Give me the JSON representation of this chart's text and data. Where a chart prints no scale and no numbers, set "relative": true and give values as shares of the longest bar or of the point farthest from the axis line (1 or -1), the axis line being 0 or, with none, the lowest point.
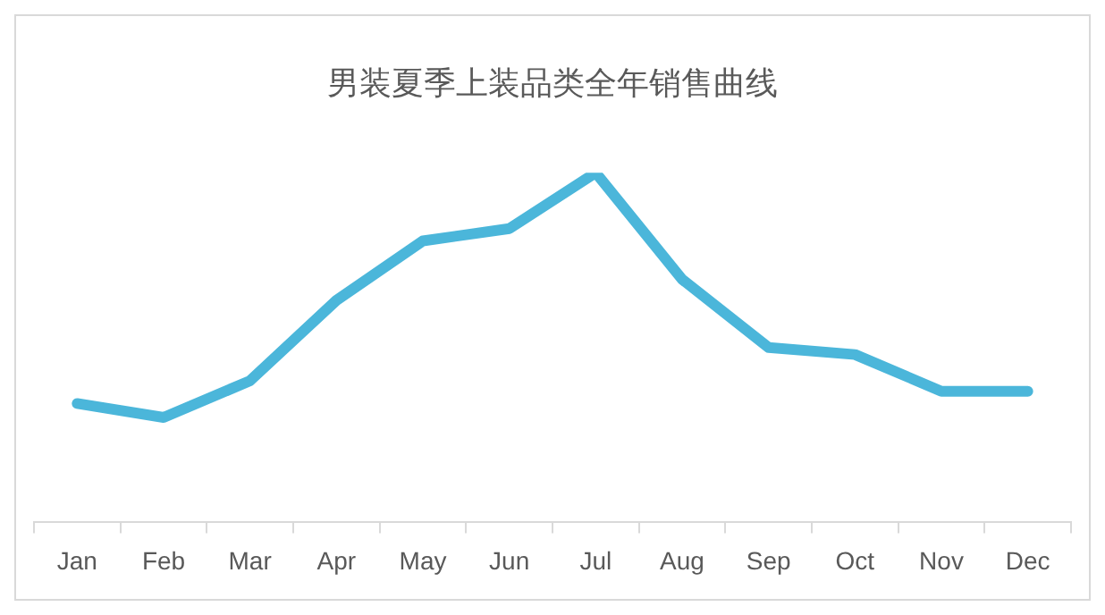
{
  "chart_data": {
    "type": "line",
    "title": "男装夏季上装品类全年销售曲线",
    "relative": true,
    "categories": [
      "Jan",
      "Feb",
      "Mar",
      "Apr",
      "May",
      "Jun",
      "Jul",
      "Aug",
      "Sep",
      "Oct",
      "Nov",
      "Dec"
    ],
    "values": [
      0.34,
      0.3,
      0.405,
      0.635,
      0.805,
      0.84,
      1,
      0.695,
      0.5,
      0.48,
      0.375,
      0.375
    ],
    "color": "#4bb6da"
  }
}
